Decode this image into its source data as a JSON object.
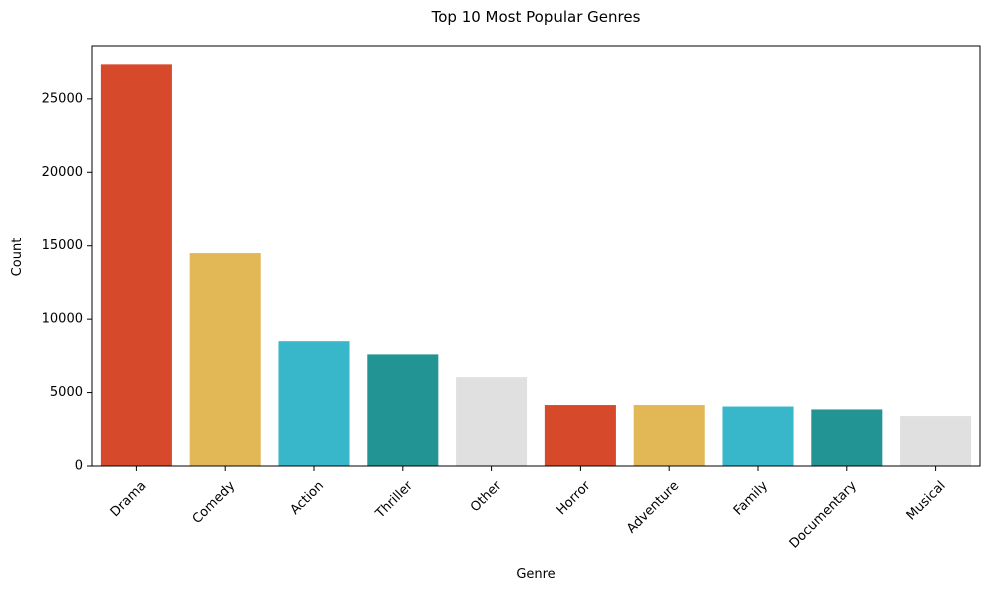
{
  "chart_data": {
    "type": "bar",
    "title": "Top 10 Most Popular Genres",
    "xlabel": "Genre",
    "ylabel": "Count",
    "categories": [
      "Drama",
      "Comedy",
      "Action",
      "Thriller",
      "Other",
      "Horror",
      "Adventure",
      "Family",
      "Documentary",
      "Musical"
    ],
    "values": [
      27350,
      14500,
      8500,
      7600,
      6050,
      4150,
      4150,
      4050,
      3850,
      3400
    ],
    "colors": [
      "#d64a2b",
      "#e2b755",
      "#37b7c9",
      "#229493",
      "#e0e0e0",
      "#d64a2b",
      "#e2b755",
      "#37b7c9",
      "#229493",
      "#e0e0e0"
    ],
    "ylim": [
      0,
      28600
    ],
    "yticks": [
      0,
      5000,
      10000,
      15000,
      20000,
      25000
    ],
    "ytick_labels": [
      "0",
      "5000",
      "10000",
      "15000",
      "20000",
      "25000"
    ],
    "grid": false,
    "legend": "none"
  }
}
